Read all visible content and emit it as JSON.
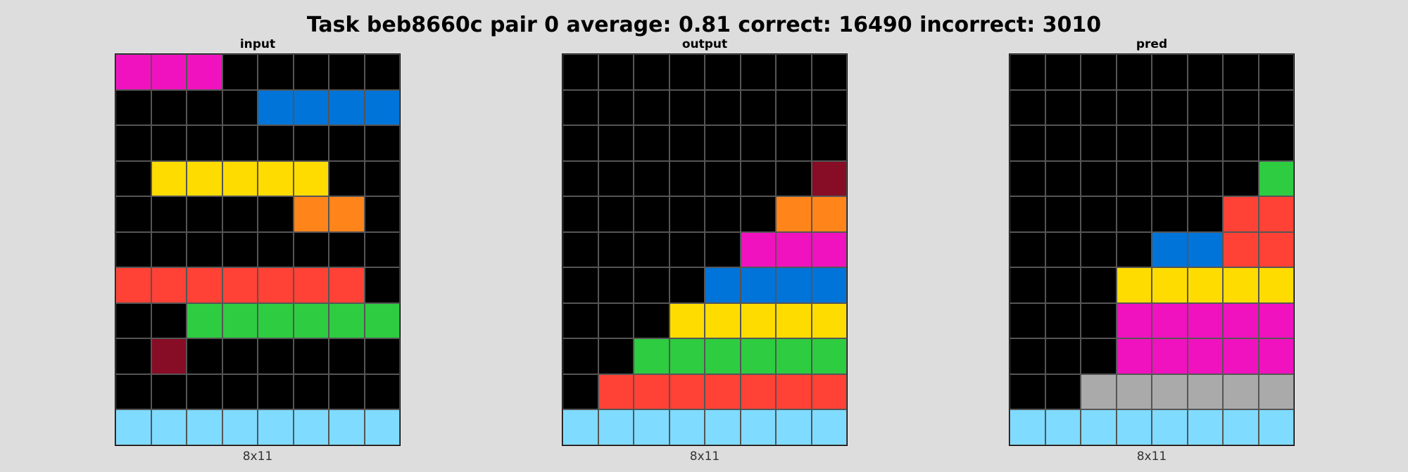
{
  "title": "Task beb8660c pair 0 average: 0.81 correct: 16490 incorrect: 3010",
  "palette": {
    "0": "#000000",
    "1": "#0074d9",
    "2": "#ff4136",
    "3": "#2ecc40",
    "4": "#ffdc00",
    "5": "#aaaaaa",
    "6": "#f012be",
    "7": "#ff851b",
    "8": "#7fdbff",
    "9": "#870c25"
  },
  "panels": [
    {
      "id": "input",
      "label": "input",
      "size_text": "8x11",
      "grid": [
        [
          6,
          6,
          6,
          0,
          0,
          0,
          0,
          0
        ],
        [
          0,
          0,
          0,
          0,
          1,
          1,
          1,
          1
        ],
        [
          0,
          0,
          0,
          0,
          0,
          0,
          0,
          0
        ],
        [
          0,
          4,
          4,
          4,
          4,
          4,
          0,
          0
        ],
        [
          0,
          0,
          0,
          0,
          0,
          7,
          7,
          0
        ],
        [
          0,
          0,
          0,
          0,
          0,
          0,
          0,
          0
        ],
        [
          2,
          2,
          2,
          2,
          2,
          2,
          2,
          0
        ],
        [
          0,
          0,
          3,
          3,
          3,
          3,
          3,
          3
        ],
        [
          0,
          9,
          0,
          0,
          0,
          0,
          0,
          0
        ],
        [
          0,
          0,
          0,
          0,
          0,
          0,
          0,
          0
        ],
        [
          8,
          8,
          8,
          8,
          8,
          8,
          8,
          8
        ]
      ]
    },
    {
      "id": "output",
      "label": "output",
      "size_text": "8x11",
      "grid": [
        [
          0,
          0,
          0,
          0,
          0,
          0,
          0,
          0
        ],
        [
          0,
          0,
          0,
          0,
          0,
          0,
          0,
          0
        ],
        [
          0,
          0,
          0,
          0,
          0,
          0,
          0,
          0
        ],
        [
          0,
          0,
          0,
          0,
          0,
          0,
          0,
          9
        ],
        [
          0,
          0,
          0,
          0,
          0,
          0,
          7,
          7
        ],
        [
          0,
          0,
          0,
          0,
          0,
          6,
          6,
          6
        ],
        [
          0,
          0,
          0,
          0,
          1,
          1,
          1,
          1
        ],
        [
          0,
          0,
          0,
          4,
          4,
          4,
          4,
          4
        ],
        [
          0,
          0,
          3,
          3,
          3,
          3,
          3,
          3
        ],
        [
          0,
          2,
          2,
          2,
          2,
          2,
          2,
          2
        ],
        [
          8,
          8,
          8,
          8,
          8,
          8,
          8,
          8
        ]
      ]
    },
    {
      "id": "pred",
      "label": "pred",
      "size_text": "8x11",
      "grid": [
        [
          0,
          0,
          0,
          0,
          0,
          0,
          0,
          0
        ],
        [
          0,
          0,
          0,
          0,
          0,
          0,
          0,
          0
        ],
        [
          0,
          0,
          0,
          0,
          0,
          0,
          0,
          0
        ],
        [
          0,
          0,
          0,
          0,
          0,
          0,
          0,
          3
        ],
        [
          0,
          0,
          0,
          0,
          0,
          0,
          2,
          2
        ],
        [
          0,
          0,
          0,
          0,
          1,
          1,
          2,
          2
        ],
        [
          0,
          0,
          0,
          4,
          4,
          4,
          4,
          4
        ],
        [
          0,
          0,
          0,
          6,
          6,
          6,
          6,
          6
        ],
        [
          0,
          0,
          0,
          6,
          6,
          6,
          6,
          6
        ],
        [
          0,
          0,
          5,
          5,
          5,
          5,
          5,
          5
        ],
        [
          8,
          8,
          8,
          8,
          8,
          8,
          8,
          8
        ]
      ]
    }
  ]
}
